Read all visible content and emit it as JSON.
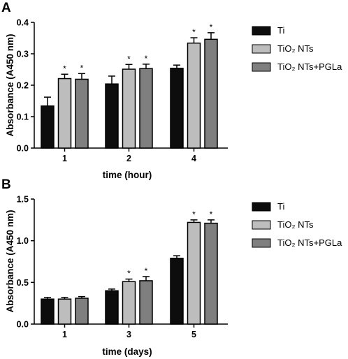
{
  "legend": {
    "labels": [
      "Ti",
      "TiO₂ NTs",
      "TiO₂ NTs+PGLa"
    ],
    "colors": [
      "#0d0d0d",
      "#bdbdbd",
      "#7f7f7f"
    ]
  },
  "chart_data": [
    {
      "panel": "A",
      "type": "bar",
      "xlabel": "time (hour)",
      "ylabel": "Absorbance (A450 nm)",
      "categories": [
        "1",
        "2",
        "4"
      ],
      "ylim": [
        0,
        0.4
      ],
      "yticks": [
        "0.0",
        "0.1",
        "0.2",
        "0.3",
        "0.4"
      ],
      "legend_position": "right",
      "grid": false,
      "series": [
        {
          "name": "Ti",
          "values": [
            0.134,
            0.204,
            0.254
          ],
          "errors": [
            0.028,
            0.025,
            0.01
          ],
          "significant": [
            false,
            false,
            false
          ]
        },
        {
          "name": "TiO₂ NTs",
          "values": [
            0.221,
            0.251,
            0.334
          ],
          "errors": [
            0.014,
            0.015,
            0.017
          ],
          "significant": [
            true,
            true,
            true
          ]
        },
        {
          "name": "TiO₂ NTs+PGLa",
          "values": [
            0.219,
            0.253,
            0.346
          ],
          "errors": [
            0.018,
            0.014,
            0.021
          ],
          "significant": [
            true,
            true,
            true
          ]
        }
      ],
      "annotation_symbol": "*"
    },
    {
      "panel": "B",
      "type": "bar",
      "xlabel": "time (days)",
      "ylabel": "Absorbance (A450 nm)",
      "categories": [
        "1",
        "3",
        "5"
      ],
      "ylim": [
        0,
        1.5
      ],
      "yticks": [
        "0.0",
        "0.5",
        "1.0",
        "1.5"
      ],
      "legend_position": "right",
      "grid": false,
      "series": [
        {
          "name": "Ti",
          "values": [
            0.3,
            0.4,
            0.79
          ],
          "errors": [
            0.02,
            0.02,
            0.03
          ],
          "significant": [
            false,
            false,
            false
          ]
        },
        {
          "name": "TiO₂ NTs",
          "values": [
            0.3,
            0.51,
            1.22
          ],
          "errors": [
            0.02,
            0.03,
            0.03
          ],
          "significant": [
            false,
            true,
            true
          ]
        },
        {
          "name": "TiO₂ NTs+PGLa",
          "values": [
            0.31,
            0.52,
            1.21
          ],
          "errors": [
            0.02,
            0.05,
            0.04
          ],
          "significant": [
            false,
            true,
            true
          ]
        }
      ],
      "annotation_symbol": "*"
    }
  ]
}
